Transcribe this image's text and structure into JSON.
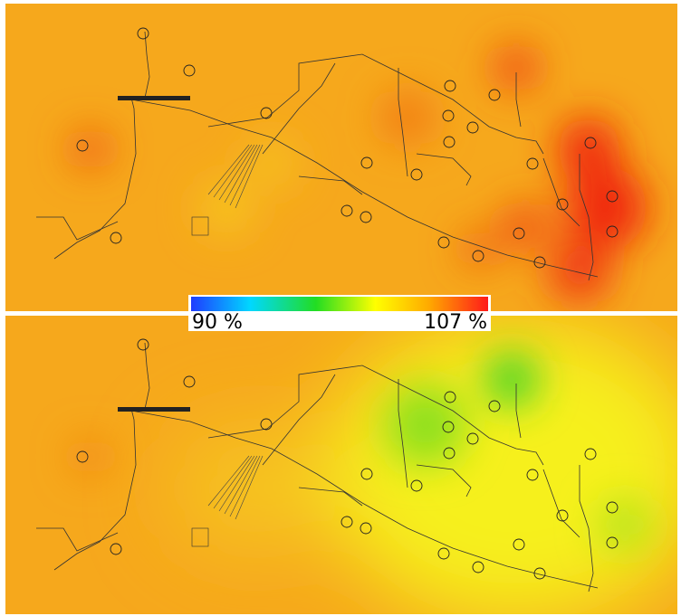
{
  "colorbar": {
    "min_label": "90 %",
    "max_label": "107 %"
  }
}
